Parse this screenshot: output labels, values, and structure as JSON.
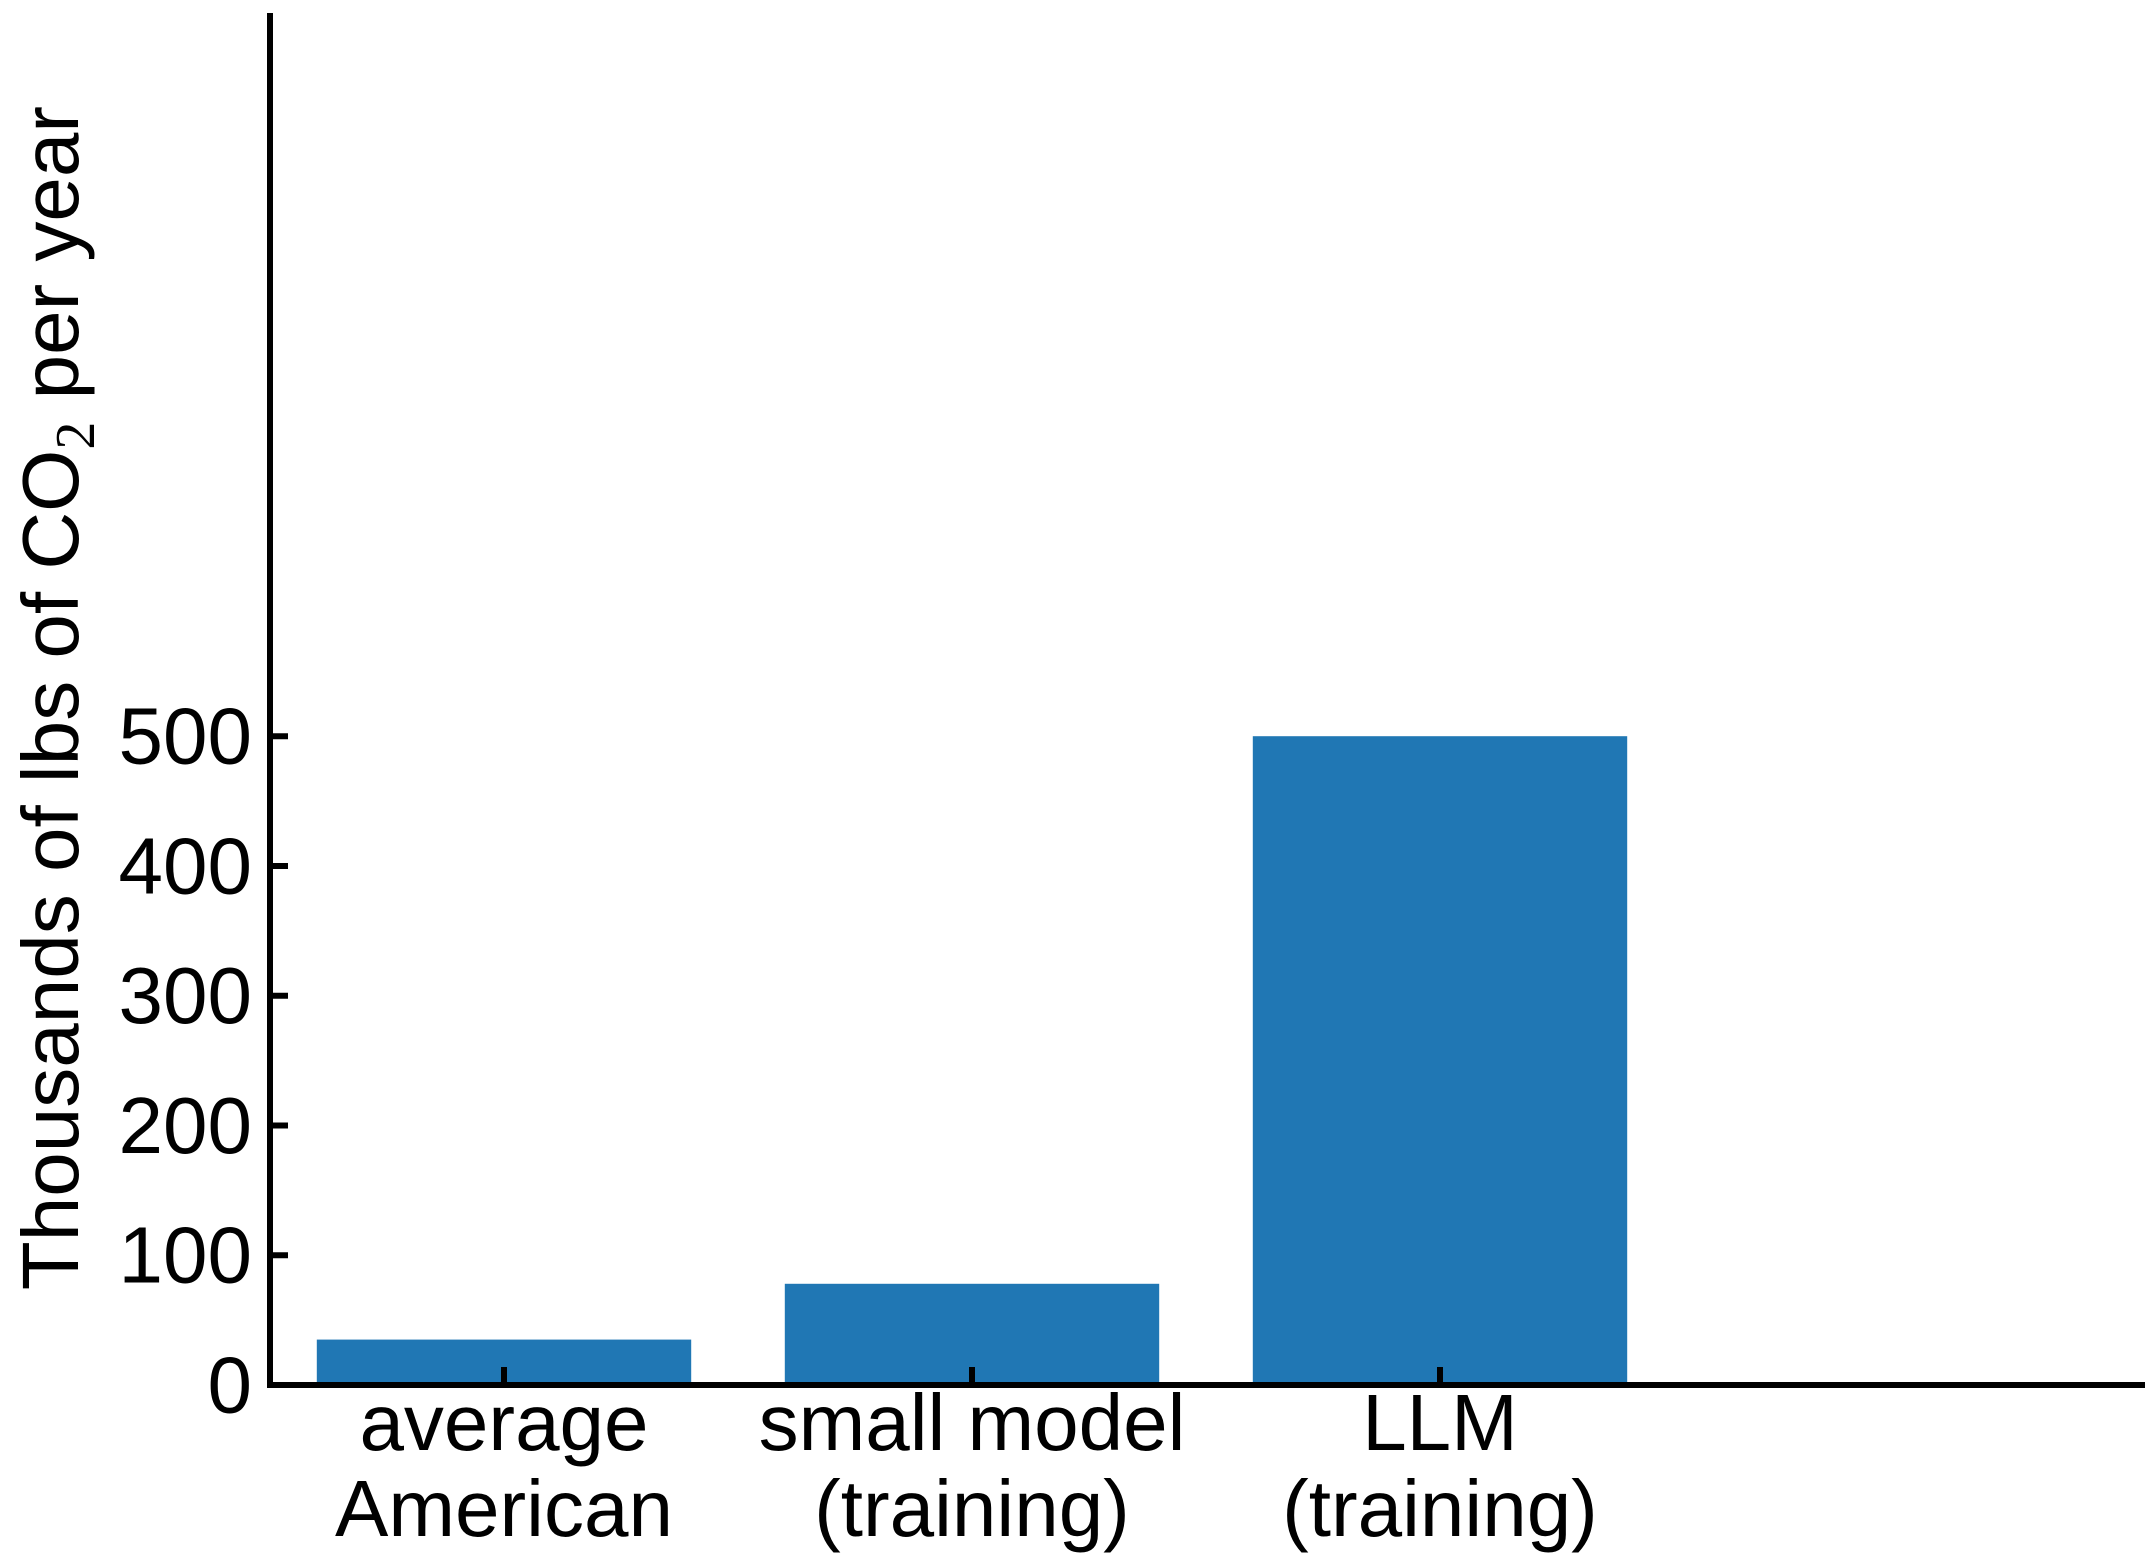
{
  "chart_data": {
    "type": "bar",
    "categories": [
      [
        "average",
        "American"
      ],
      [
        "small model",
        "(training)"
      ],
      [
        "LLM",
        "(training)"
      ]
    ],
    "values": [
      35,
      78,
      500
    ],
    "bar_color": "#2077b4",
    "ylabel": {
      "before": "Thousands of lbs of CO",
      "subscript": "2",
      "after": " per year"
    },
    "yticks": [
      0,
      100,
      200,
      300,
      400,
      500
    ],
    "ylim": [
      0,
      530
    ],
    "xlim": [
      -0.5,
      3.5
    ],
    "grid": false,
    "legend": "none"
  }
}
